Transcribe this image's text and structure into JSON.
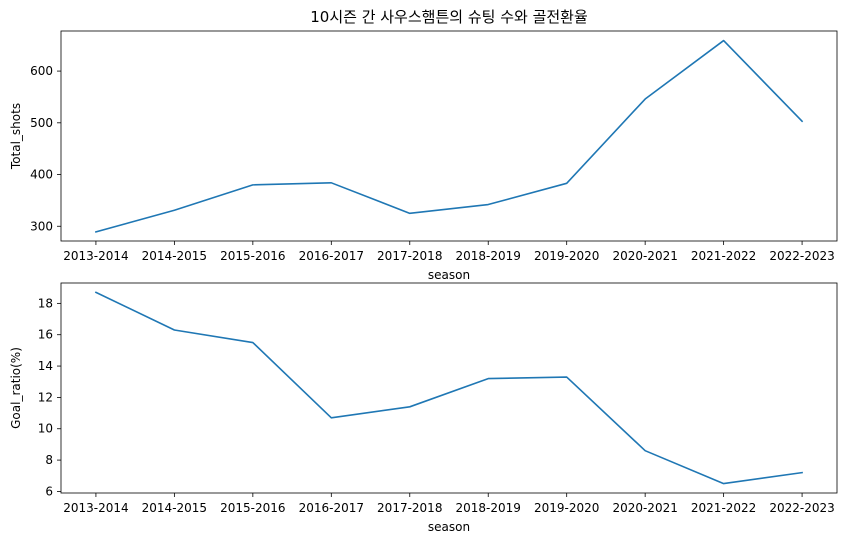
{
  "chart_data": [
    {
      "type": "line",
      "title": "10시즌 간 사우스햄튼의 슈팅 수와 골전환율",
      "xlabel": "season",
      "ylabel": "Total_shots",
      "categories": [
        "2013-2014",
        "2014-2015",
        "2015-2016",
        "2016-2017",
        "2017-2018",
        "2018-2019",
        "2019-2020",
        "2020-2021",
        "2021-2022",
        "2022-2023"
      ],
      "series": [
        {
          "values": [
            289,
            331,
            380,
            384,
            325,
            342,
            383,
            546,
            659,
            503
          ],
          "color": "#1f77b4"
        }
      ],
      "ylim": [
        271.5,
        677.5
      ],
      "yticks": [
        300,
        400,
        500,
        600
      ],
      "grid": false
    },
    {
      "type": "line",
      "title": "",
      "xlabel": "season",
      "ylabel": "Goal_ratio(%)",
      "categories": [
        "2013-2014",
        "2014-2015",
        "2015-2016",
        "2016-2017",
        "2017-2018",
        "2018-2019",
        "2019-2020",
        "2020-2021",
        "2021-2022",
        "2022-2023"
      ],
      "series": [
        {
          "values": [
            18.7,
            16.3,
            15.5,
            10.7,
            11.4,
            13.2,
            13.3,
            8.6,
            6.5,
            7.2
          ],
          "color": "#1f77b4"
        }
      ],
      "ylim": [
        5.9,
        19.3
      ],
      "yticks": [
        6,
        8,
        10,
        12,
        14,
        16,
        18
      ],
      "grid": false
    }
  ]
}
